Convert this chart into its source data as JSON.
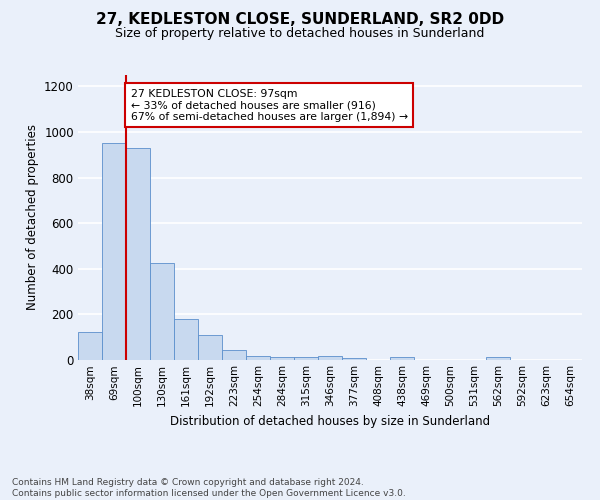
{
  "title": "27, KEDLESTON CLOSE, SUNDERLAND, SR2 0DD",
  "subtitle": "Size of property relative to detached houses in Sunderland",
  "xlabel": "Distribution of detached houses by size in Sunderland",
  "ylabel": "Number of detached properties",
  "categories": [
    "38sqm",
    "69sqm",
    "100sqm",
    "130sqm",
    "161sqm",
    "192sqm",
    "223sqm",
    "254sqm",
    "284sqm",
    "315sqm",
    "346sqm",
    "377sqm",
    "408sqm",
    "438sqm",
    "469sqm",
    "500sqm",
    "531sqm",
    "562sqm",
    "592sqm",
    "623sqm",
    "654sqm"
  ],
  "values": [
    125,
    950,
    930,
    425,
    180,
    110,
    45,
    18,
    15,
    15,
    18,
    10,
    0,
    12,
    0,
    0,
    0,
    12,
    0,
    0,
    0
  ],
  "bar_color": "#c8d9ef",
  "bar_edge_color": "#5b8fcc",
  "red_line_index": 2,
  "annotation_text": "27 KEDLESTON CLOSE: 97sqm\n← 33% of detached houses are smaller (916)\n67% of semi-detached houses are larger (1,894) →",
  "annotation_box_color": "#ffffff",
  "annotation_box_edge": "#cc0000",
  "red_line_color": "#cc0000",
  "ylim": [
    0,
    1250
  ],
  "yticks": [
    0,
    200,
    400,
    600,
    800,
    1000,
    1200
  ],
  "footer": "Contains HM Land Registry data © Crown copyright and database right 2024.\nContains public sector information licensed under the Open Government Licence v3.0.",
  "bg_color": "#eaf0fa",
  "grid_color": "#ffffff"
}
